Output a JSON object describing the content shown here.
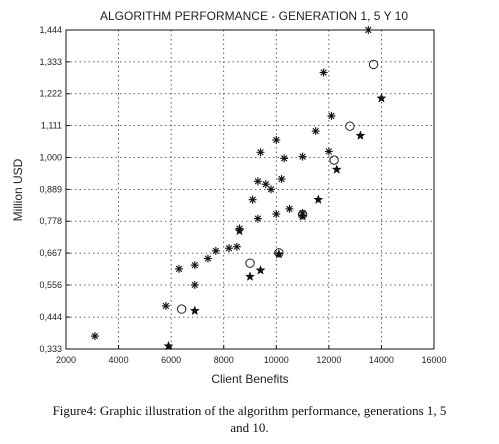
{
  "chart_data": {
    "type": "scatter",
    "title": "ALGORITHM PERFORMANCE - GENERATION 1, 5 Y 10",
    "xlabel": "Client Benefits",
    "ylabel": "Million USD",
    "xlim": [
      2000,
      16000
    ],
    "ylim": [
      0.333,
      1.444
    ],
    "x_ticks": [
      "2000",
      "4000",
      "6000",
      "8000",
      "10000",
      "12000",
      "14000",
      "16000"
    ],
    "x_tick_values": [
      2000,
      4000,
      6000,
      8000,
      10000,
      12000,
      14000,
      16000
    ],
    "y_ticks": [
      "0,333",
      "0,444",
      "0,556",
      "0,667",
      "0,778",
      "0,889",
      "1,000",
      "1,111",
      "1,222",
      "1,333",
      "1,444"
    ],
    "y_tick_values": [
      0.333,
      0.444,
      0.556,
      0.667,
      0.778,
      0.889,
      1.0,
      1.111,
      1.222,
      1.333,
      1.444
    ],
    "grid": true,
    "series": [
      {
        "marker": "asterisk",
        "points": [
          [
            3100,
            0.378
          ],
          [
            5800,
            0.483
          ],
          [
            6300,
            0.612
          ],
          [
            6900,
            0.625
          ],
          [
            6900,
            0.556
          ],
          [
            7400,
            0.648
          ],
          [
            7700,
            0.675
          ],
          [
            8200,
            0.684
          ],
          [
            8500,
            0.689
          ],
          [
            8600,
            0.753
          ],
          [
            9100,
            0.853
          ],
          [
            9300,
            0.917
          ],
          [
            9300,
            0.787
          ],
          [
            9400,
            1.018
          ],
          [
            9600,
            0.907
          ],
          [
            9800,
            0.889
          ],
          [
            10000,
            1.061
          ],
          [
            10000,
            0.803
          ],
          [
            10200,
            0.925
          ],
          [
            10300,
            0.997
          ],
          [
            10500,
            0.821
          ],
          [
            11000,
            1.003
          ],
          [
            11000,
            0.807
          ],
          [
            11500,
            1.092
          ],
          [
            11800,
            1.296
          ],
          [
            12000,
            1.021
          ],
          [
            12100,
            1.145
          ],
          [
            13500,
            1.444
          ]
        ]
      },
      {
        "marker": "star",
        "points": [
          [
            5900,
            0.343
          ],
          [
            6900,
            0.466
          ],
          [
            8600,
            0.744
          ],
          [
            9000,
            0.585
          ],
          [
            9400,
            0.607
          ],
          [
            10100,
            0.663
          ],
          [
            11000,
            0.795
          ],
          [
            11600,
            0.853
          ],
          [
            12300,
            0.958
          ],
          [
            13200,
            1.076
          ],
          [
            14000,
            1.206
          ]
        ]
      },
      {
        "marker": "circle",
        "points": [
          [
            6400,
            0.472
          ],
          [
            9000,
            0.632
          ],
          [
            10100,
            0.668
          ],
          [
            11000,
            0.801
          ],
          [
            12200,
            0.991
          ],
          [
            12800,
            1.109
          ],
          [
            13700,
            1.324
          ]
        ]
      }
    ]
  },
  "caption": {
    "label": "Figure4",
    "text": ": Graphic illustration of the algorithm performance, generations 1, 5",
    "text2": "and 10."
  }
}
